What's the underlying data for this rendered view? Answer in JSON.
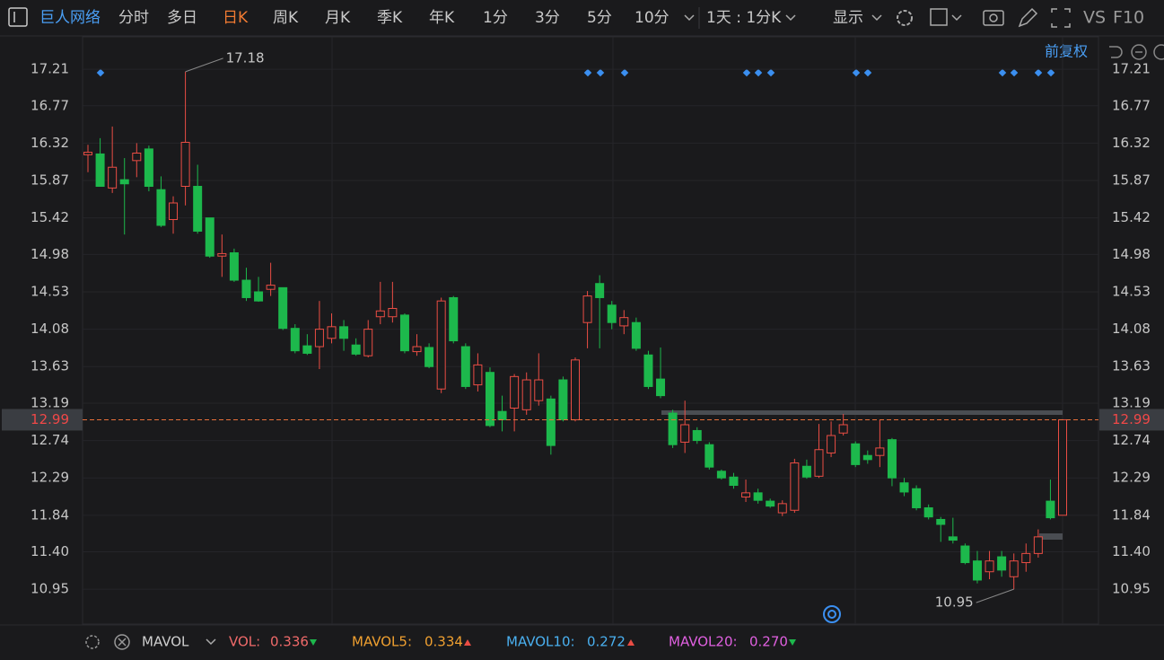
{
  "toolbar": {
    "stock": "巨人网络",
    "periods": [
      "分时",
      "多日",
      "日K",
      "周K",
      "月K",
      "季K",
      "年K",
      "1分",
      "3分",
      "5分",
      "10分"
    ],
    "active_period": 2,
    "interval": "1天 : 1分K",
    "display": "显示",
    "compare": "VS",
    "f10": "F10"
  },
  "adjust": "前复权",
  "chart_data": {
    "type": "candlestick",
    "up_color": "#ea4d44",
    "down_color": "#1db84c",
    "series": [
      {
        "open": [
          16.18,
          16.19,
          15.78,
          15.88,
          16.11,
          16.25,
          15.76,
          15.4,
          15.8,
          15.8,
          15.42,
          14.96,
          15.0,
          14.67,
          14.53,
          14.56,
          14.58,
          14.09,
          13.88,
          13.87,
          13.97,
          14.11,
          13.89,
          13.76,
          14.23,
          14.23,
          14.25,
          13.81,
          13.86,
          13.36,
          14.46,
          13.87,
          13.41,
          13.56,
          13.09,
          13.13,
          13.11,
          13.22,
          13.24,
          13.47,
          12.99,
          14.16,
          14.63,
          14.37,
          14.12,
          14.16,
          13.77,
          13.48,
          13.07,
          12.72,
          12.86,
          12.69,
          12.37,
          12.3,
          12.06,
          12.11,
          12.01,
          11.87,
          11.9,
          12.43,
          12.31,
          12.59,
          12.83,
          12.7,
          12.56,
          12.56,
          12.75,
          12.23,
          12.16,
          11.93,
          11.79,
          11.58,
          11.47,
          11.29,
          11.16,
          11.34,
          11.1,
          11.27,
          11.38,
          12.01,
          11.84
        ],
        "high": [
          16.3,
          16.38,
          16.52,
          16.14,
          16.32,
          16.29,
          15.92,
          15.68,
          17.18,
          16.06,
          15.42,
          15.22,
          15.05,
          14.82,
          14.71,
          14.88,
          14.58,
          14.14,
          14.02,
          14.42,
          14.27,
          14.19,
          13.97,
          14.19,
          14.65,
          14.65,
          14.27,
          14.02,
          13.91,
          14.46,
          14.48,
          13.91,
          13.79,
          13.62,
          13.28,
          13.54,
          13.56,
          13.79,
          13.28,
          13.51,
          13.74,
          14.54,
          14.73,
          14.42,
          14.31,
          14.22,
          13.82,
          13.86,
          13.11,
          13.22,
          12.9,
          12.72,
          12.39,
          12.35,
          12.27,
          12.16,
          12.04,
          12.02,
          12.52,
          12.51,
          12.94,
          12.97,
          13.06,
          12.73,
          12.62,
          12.99,
          12.77,
          12.29,
          12.2,
          11.97,
          11.82,
          11.81,
          11.5,
          11.41,
          11.41,
          11.41,
          11.38,
          11.5,
          11.67,
          12.27,
          12.99
        ],
        "low": [
          15.97,
          15.8,
          15.72,
          15.22,
          15.91,
          15.74,
          15.31,
          15.23,
          15.57,
          15.23,
          14.94,
          14.71,
          14.65,
          14.42,
          14.41,
          14.48,
          14.07,
          13.79,
          13.77,
          13.6,
          13.91,
          13.82,
          13.76,
          13.74,
          14.14,
          14.16,
          13.79,
          13.76,
          13.61,
          13.31,
          13.91,
          13.36,
          13.33,
          12.9,
          12.85,
          12.85,
          13.05,
          13.16,
          12.57,
          12.97,
          12.97,
          13.85,
          13.85,
          14.08,
          14.02,
          13.82,
          13.36,
          13.25,
          12.65,
          12.59,
          12.7,
          12.39,
          12.27,
          12.16,
          12.0,
          11.98,
          11.93,
          11.83,
          11.87,
          12.28,
          12.29,
          12.54,
          12.8,
          12.42,
          12.46,
          12.42,
          12.19,
          12.07,
          11.9,
          11.79,
          11.52,
          11.5,
          11.25,
          11.02,
          11.07,
          11.1,
          10.95,
          11.16,
          11.33,
          11.79,
          11.84
        ],
        "close": [
          16.21,
          15.8,
          16.03,
          15.83,
          16.2,
          15.8,
          15.33,
          15.6,
          16.33,
          15.26,
          14.96,
          14.99,
          14.67,
          14.46,
          14.42,
          14.61,
          14.09,
          13.82,
          13.79,
          14.08,
          14.11,
          13.97,
          13.78,
          14.08,
          14.3,
          14.33,
          13.82,
          13.87,
          13.63,
          14.42,
          13.94,
          13.39,
          13.65,
          12.92,
          12.99,
          13.51,
          13.47,
          13.47,
          12.68,
          12.99,
          13.71,
          14.48,
          14.46,
          14.16,
          14.22,
          13.85,
          13.39,
          13.28,
          12.69,
          12.93,
          12.74,
          12.42,
          12.29,
          12.2,
          12.11,
          12.02,
          11.95,
          11.98,
          12.47,
          12.3,
          12.63,
          12.8,
          12.93,
          12.45,
          12.51,
          12.65,
          12.29,
          12.12,
          11.93,
          11.82,
          11.73,
          11.54,
          11.27,
          11.06,
          11.29,
          11.18,
          11.29,
          11.38,
          11.58,
          11.81,
          12.99
        ]
      }
    ],
    "ylim": [
      10.53,
      17.6
    ],
    "yticks": [
      17.21,
      16.77,
      16.32,
      15.87,
      15.42,
      14.98,
      14.53,
      14.08,
      13.63,
      13.19,
      12.74,
      12.29,
      11.84,
      11.4,
      10.95
    ],
    "yticks_labels": [
      "17.21",
      "16.77",
      "16.32",
      "15.87",
      "15.42",
      "14.98",
      "14.53",
      "14.08",
      "13.63",
      "13.19",
      "12.74",
      "12.29",
      "11.84",
      "11.40",
      "10.95"
    ],
    "last_price": 12.99,
    "high_label": "17.18",
    "low_label": "10.95",
    "grid": true
  },
  "indicator": {
    "name": "MAVOL",
    "items": [
      {
        "label": "VOL:",
        "value": "0.336",
        "color": "#f06a6a"
      },
      {
        "label": "MAVOL5:",
        "value": "0.334",
        "color": "#f0a030"
      },
      {
        "label": "MAVOL10:",
        "value": "0.272",
        "color": "#4ab0f0"
      },
      {
        "label": "MAVOL20:",
        "value": "0.270",
        "color": "#e060e0"
      }
    ]
  }
}
